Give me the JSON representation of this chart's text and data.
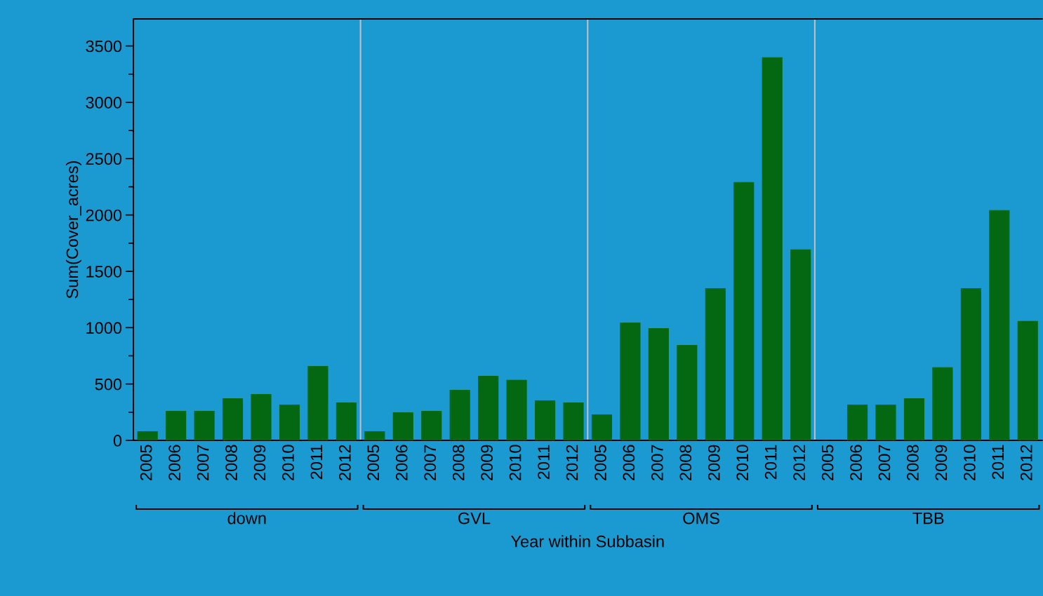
{
  "chart_data": {
    "type": "bar",
    "xlabel": "Year within Subbasin",
    "ylabel": "Sum(Cover_acres)",
    "categories": [
      "2005",
      "2006",
      "2007",
      "2008",
      "2009",
      "2010",
      "2011",
      "2012",
      "2005",
      "2006",
      "2007",
      "2008",
      "2009",
      "2010",
      "2011",
      "2012",
      "2005",
      "2006",
      "2007",
      "2008",
      "2009",
      "2010",
      "2011",
      "2012",
      "2005",
      "2006",
      "2007",
      "2008",
      "2009",
      "2010",
      "2011",
      "2012"
    ],
    "values": [
      81,
      262,
      262,
      374,
      411,
      318,
      660,
      336,
      81,
      249,
      262,
      448,
      573,
      536,
      355,
      336,
      230,
      1046,
      996,
      847,
      1351,
      2292,
      3400,
      1694,
      0,
      318,
      318,
      374,
      648,
      1351,
      2042,
      1059
    ],
    "color": "#036811",
    "annotations": [
      "down",
      "GVL",
      "OMS",
      "TBB"
    ],
    "ylim": [
      0,
      3740
    ],
    "yticks": [
      0,
      500,
      1000,
      1500,
      2000,
      2500,
      3000,
      3500
    ],
    "grid": false,
    "legend": false
  }
}
